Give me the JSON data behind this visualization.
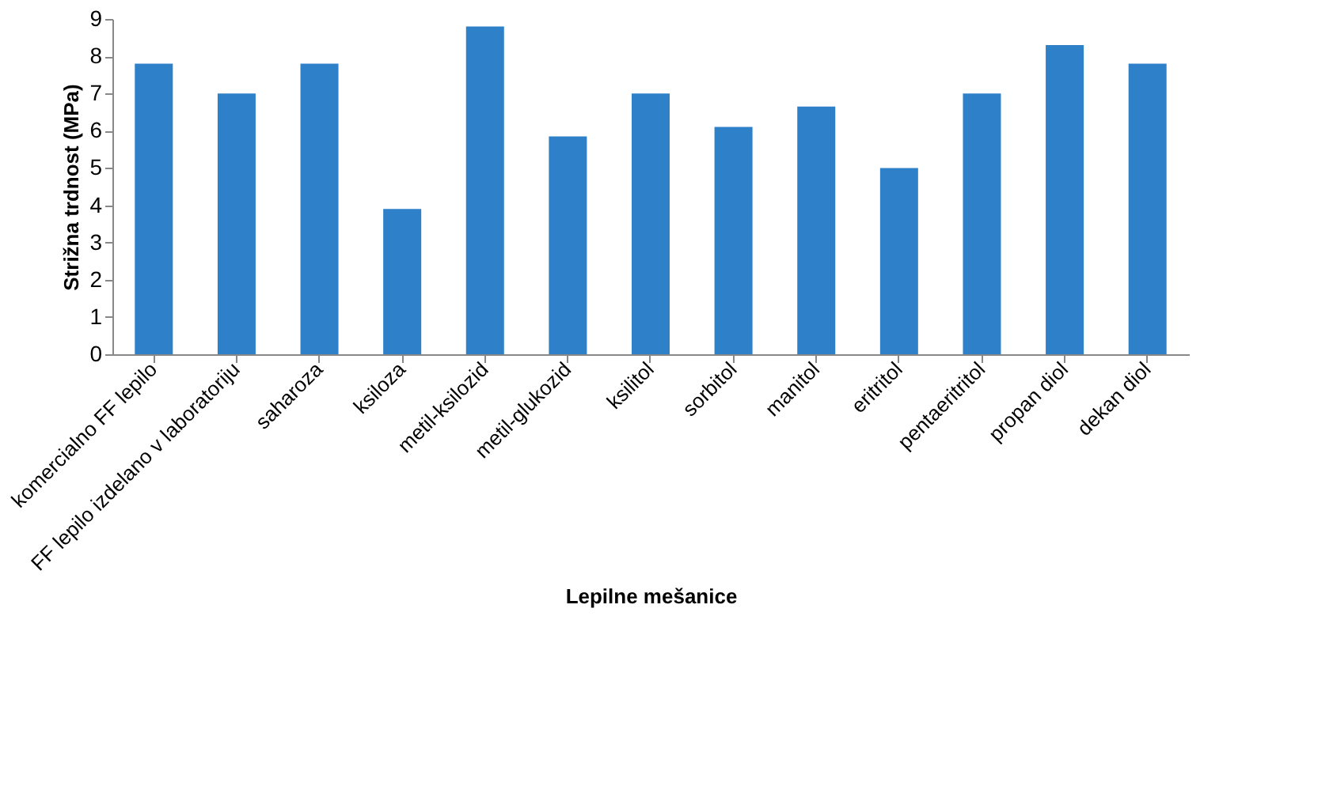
{
  "chart_data": {
    "type": "bar",
    "xlabel": "Lepilne mešanice",
    "ylabel": "Strižna trdnost (MPa)",
    "categories": [
      "komercialno FF lepilo",
      "FF lepilo izdelano v laboratoriju",
      "saharoza",
      "ksiloza",
      "metil-ksilozid",
      "metil-glukozid",
      "ksilitol",
      "sorbitol",
      "manitol",
      "eritritol",
      "pentaeritritol",
      "propan diol",
      "dekan diol"
    ],
    "values": [
      7.8,
      7.0,
      7.8,
      3.9,
      8.8,
      5.85,
      7.0,
      6.1,
      6.65,
      5.0,
      7.0,
      8.3,
      7.8
    ],
    "color": "#2e80c8",
    "ylim": [
      0,
      9
    ],
    "yticks": [
      0,
      1,
      2,
      3,
      4,
      5,
      6,
      7,
      8,
      9
    ],
    "grid": false
  }
}
